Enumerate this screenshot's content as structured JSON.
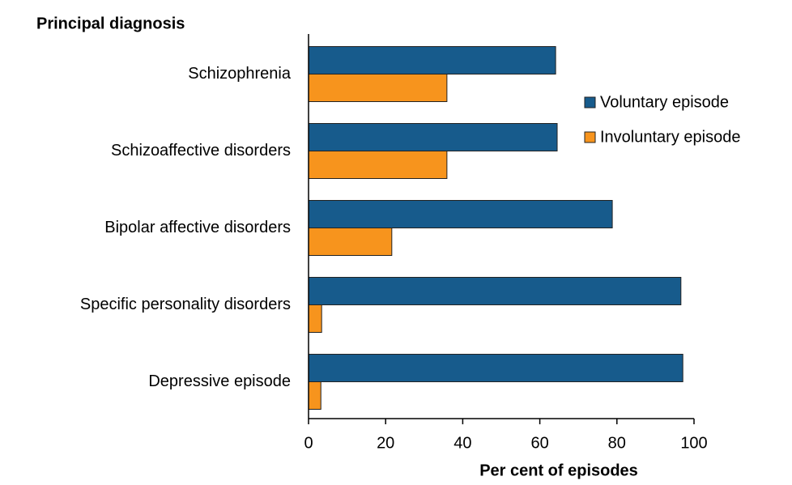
{
  "chart_data": {
    "type": "hbar",
    "y_axis_title": "Principal diagnosis",
    "x_axis_title": "Per cent of episodes",
    "categories": [
      "Schizophrenia",
      "Schizoaffective disorders",
      "Bipolar affective disorders",
      "Specific personality disorders",
      "Depressive episode"
    ],
    "series": [
      {
        "name": "Voluntary episode",
        "color": "#175b8c",
        "values": [
          64.1,
          64.5,
          78.8,
          96.6,
          97.1
        ]
      },
      {
        "name": "Involuntary episode",
        "color": "#f7941d",
        "values": [
          35.9,
          35.9,
          21.6,
          3.4,
          3.2
        ]
      }
    ],
    "xlim": [
      0,
      100
    ],
    "xticks": [
      0,
      20,
      40,
      60,
      80,
      100
    ],
    "legend": "right",
    "grid": false
  }
}
